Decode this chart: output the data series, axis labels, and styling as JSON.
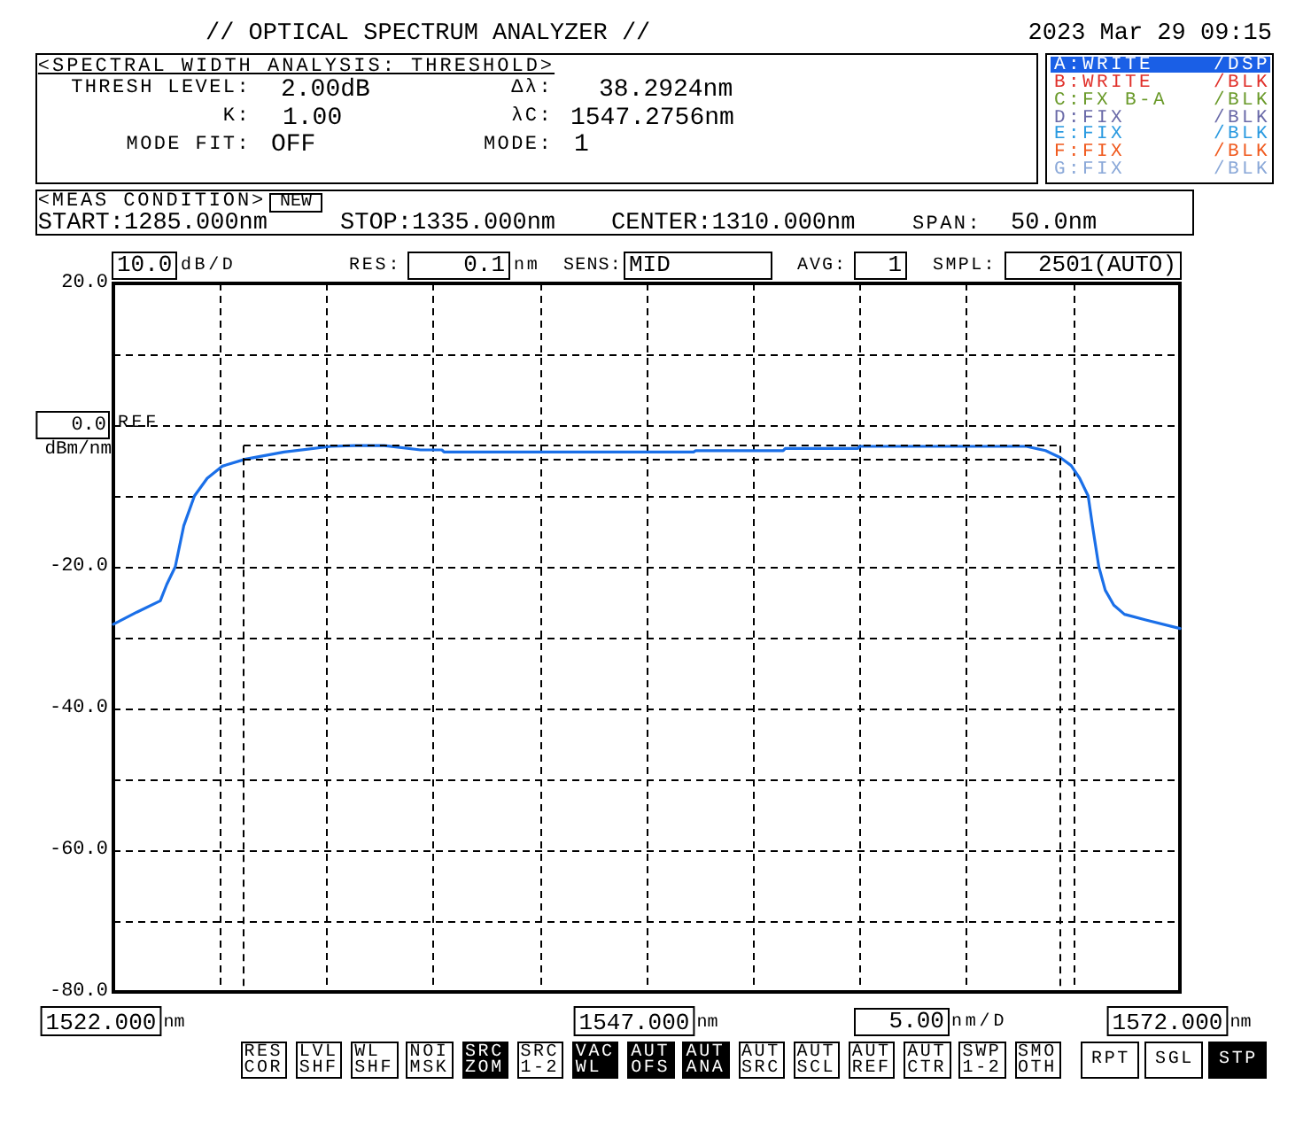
{
  "chart_data": {
    "type": "line",
    "title": "// OPTICAL SPECTRUM ANALYZER //",
    "ylabel": "dBm/nm",
    "xlim": [
      1522,
      1572
    ],
    "xticks": [
      {
        "value": 1522,
        "label": "1522.000 nm"
      },
      {
        "value": 1527,
        "label": null
      },
      {
        "value": 1532,
        "label": null
      },
      {
        "value": 1537,
        "label": null
      },
      {
        "value": 1542,
        "label": null
      },
      {
        "value": 1547,
        "label": "1547.000 nm"
      },
      {
        "value": 1552,
        "label": null
      },
      {
        "value": 1557,
        "label": null
      },
      {
        "value": 1562,
        "label": null
      },
      {
        "value": 1567,
        "label": null
      },
      {
        "value": 1572,
        "label": "1572.000 nm"
      }
    ],
    "ylim": [
      -80,
      20
    ],
    "yticks": [
      {
        "value": -80,
        "label": "-80.0"
      },
      {
        "value": -70,
        "label": null
      },
      {
        "value": -60,
        "label": "-60.0"
      },
      {
        "value": -50,
        "label": null
      },
      {
        "value": -40,
        "label": "-40.0"
      },
      {
        "value": -30,
        "label": null
      },
      {
        "value": -20,
        "label": "-20.0"
      },
      {
        "value": -10,
        "label": null
      },
      {
        "value": 0,
        "label": "0.0"
      },
      {
        "value": 10,
        "label": null
      },
      {
        "value": 20,
        "label": "20.0"
      }
    ],
    "grid": true,
    "marker": "none",
    "line_style": "solid",
    "series": [
      {
        "color": "#1a6fe8",
        "x": [
          1522,
          1523.1,
          1524.2,
          1524.5,
          1524.9,
          1525.3,
          1525.8,
          1526.4,
          1527.1,
          1528.2,
          1530,
          1532.2,
          1533.3,
          1534.7,
          1536.4,
          1537.4,
          1537.5,
          1549.2,
          1549.3,
          1553.4,
          1553.5,
          1556.9,
          1557,
          1564.8,
          1565.7,
          1566.4,
          1566.9,
          1567.3,
          1567.7,
          1567.9,
          1568.2,
          1568.5,
          1568.9,
          1569.4,
          1570.4,
          1572
        ],
        "values": [
          -28.1,
          -26.4,
          -24.8,
          -22.5,
          -20,
          -14.2,
          -10,
          -7.5,
          -5.8,
          -4.8,
          -3.8,
          -3,
          -2.9,
          -2.9,
          -3.5,
          -3.5,
          -3.8,
          -3.8,
          -3.6,
          -3.6,
          -3.3,
          -3.3,
          -3,
          -3,
          -3.6,
          -4.6,
          -5.7,
          -7.5,
          -10,
          -14.2,
          -20,
          -23.3,
          -25.4,
          -26.7,
          -27.5,
          -28.7
        ]
      }
    ],
    "ref_lines": [
      {
        "axis": "x",
        "value": 1528.1,
        "color": "#000000",
        "line_style": "dashed"
      },
      {
        "axis": "x",
        "value": 1566.4,
        "color": "#000000",
        "line_style": "dashed"
      },
      {
        "axis": "y",
        "value": -2.9,
        "color": "#000000",
        "line_style": "dashed"
      },
      {
        "axis": "y",
        "value": -4.9,
        "color": "#000000",
        "line_style": "dashed"
      }
    ],
    "annotations": [
      "2023 Mar 29 09:15",
      "<SPECTRAL WIDTH ANALYSIS: THRESHOLD>",
      "THRESH LEVEL:",
      "2.00dB",
      "K:",
      "1.00",
      "MODE FIT:",
      "OFF",
      "Δλ:",
      "38.2924nm",
      "λC:",
      "1547.2756nm",
      "MODE:",
      "1",
      "A:WRITE",
      "/DSP",
      "B:WRITE",
      "/BLK",
      "C:FX B-A",
      "/BLK",
      "D:FIX",
      "/BLK",
      "E:FIX",
      "/BLK",
      "F:FIX",
      "/BLK",
      "G:FIX",
      "/BLK",
      "<MEAS CONDITION>",
      "NEW",
      "START:1285.000nm",
      "STOP:1335.000nm",
      "CENTER:1310.000nm",
      "SPAN:",
      "50.0nm",
      "10.0",
      "dB/D",
      "RES:",
      "0.1",
      "nm",
      "SENS:",
      "MID",
      "AVG:",
      "1",
      "SMPL:",
      "2501(AUTO)",
      "REF",
      "5.00",
      "nm/D",
      "RES COR",
      "LVL SHF",
      "WL SHF",
      "NOI MSK",
      "SRC ZOM",
      "SRC 1-2",
      "VAC WL",
      "AUT OFS",
      "AUT ANA",
      "AUT SRC",
      "AUT SCL",
      "AUT REF",
      "AUT CTR",
      "SWP 1-2",
      "SMO OTH",
      "RPT",
      "SGL",
      "STP"
    ]
  }
}
